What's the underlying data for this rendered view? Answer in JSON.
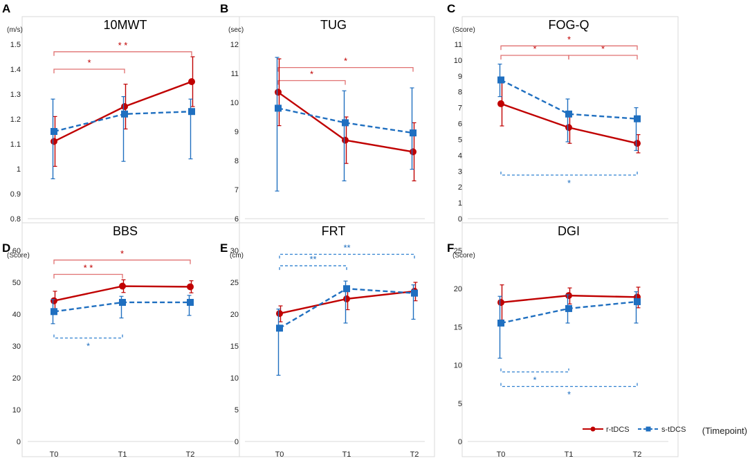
{
  "colors": {
    "r": "#c00000",
    "s": "#1f6fc0",
    "bracket_r": "#e07070",
    "bracket_s": "#2f80d0"
  },
  "legend": {
    "r_label": "r-tDCS",
    "s_label": "s-tDCS"
  },
  "timepoint_label": "(Timepoint)",
  "chart_data": [
    {
      "letter": "A",
      "title": "10MWT",
      "unit": "(m/s)",
      "type": "line",
      "categories": [
        "T0",
        "T1",
        "T2"
      ],
      "ylim": [
        0.8,
        1.5
      ],
      "yticks": [
        0.8,
        0.9,
        1,
        1.1,
        1.2,
        1.3,
        1.4,
        1.5
      ],
      "series": [
        {
          "name": "r-tDCS",
          "values": [
            1.11,
            1.25,
            1.35
          ],
          "err_low": [
            1.01,
            1.16,
            1.25
          ],
          "err_high": [
            1.21,
            1.34,
            1.45
          ]
        },
        {
          "name": "s-tDCS",
          "values": [
            1.15,
            1.22,
            1.23
          ],
          "err_low": [
            0.96,
            1.03,
            1.04
          ],
          "err_high": [
            1.28,
            1.29,
            1.28
          ]
        }
      ],
      "brackets": [
        {
          "group": "r",
          "from": "T0",
          "to": "T1",
          "level": 1.4,
          "label": "*"
        },
        {
          "group": "r",
          "from": "T0",
          "to": "T2",
          "level": 1.47,
          "label": "* *"
        }
      ]
    },
    {
      "letter": "B",
      "title": "TUG",
      "unit": "(sec)",
      "type": "line",
      "categories": [
        "T0",
        "T1",
        "T2"
      ],
      "ylim": [
        6,
        12
      ],
      "yticks": [
        6,
        7,
        8,
        9,
        10,
        11,
        12
      ],
      "series": [
        {
          "name": "r-tDCS",
          "values": [
            10.35,
            8.7,
            8.3
          ],
          "err_low": [
            9.2,
            7.9,
            7.3
          ],
          "err_high": [
            11.5,
            9.5,
            9.3
          ]
        },
        {
          "name": "s-tDCS",
          "values": [
            9.8,
            9.3,
            8.95
          ],
          "err_low": [
            6.95,
            7.3,
            7.7
          ],
          "err_high": [
            11.55,
            10.4,
            10.5
          ]
        }
      ],
      "brackets": [
        {
          "group": "r",
          "from": "T0",
          "to": "T1",
          "level": 10.75,
          "label": "*"
        },
        {
          "group": "r",
          "from": "T0",
          "to": "T2",
          "level": 11.2,
          "label": "*"
        }
      ]
    },
    {
      "letter": "C",
      "title": "FOG-Q",
      "unit": "(Score)",
      "type": "line",
      "categories": [
        "T0",
        "T1",
        "T2"
      ],
      "ylim": [
        0,
        11
      ],
      "yticks": [
        0,
        1,
        2,
        3,
        4,
        5,
        6,
        7,
        8,
        9,
        10,
        11
      ],
      "series": [
        {
          "name": "r-tDCS",
          "values": [
            7.25,
            5.75,
            4.75
          ],
          "err_low": [
            5.85,
            4.75,
            4.15
          ],
          "err_high": [
            8.6,
            6.7,
            5.3
          ]
        },
        {
          "name": "s-tDCS",
          "values": [
            8.75,
            6.6,
            6.3
          ],
          "err_low": [
            7.7,
            4.85,
            4.3
          ],
          "err_high": [
            9.75,
            7.55,
            7.0
          ]
        }
      ],
      "brackets": [
        {
          "group": "r",
          "from": "T0",
          "to": "T1",
          "level": 10.3,
          "label": "*"
        },
        {
          "group": "r",
          "from": "T1",
          "to": "T2",
          "level": 10.3,
          "label": "*"
        },
        {
          "group": "r",
          "from": "T0",
          "to": "T2",
          "level": 10.9,
          "label": "*"
        },
        {
          "group": "s",
          "from": "T0",
          "to": "T2",
          "level": 2.75,
          "label": "*"
        }
      ]
    },
    {
      "letter": "D",
      "title": "BBS",
      "unit": "(Score)",
      "type": "line",
      "categories": [
        "T0",
        "T1",
        "T2"
      ],
      "ylim": [
        0,
        60
      ],
      "yticks": [
        0,
        10,
        20,
        30,
        40,
        50,
        60
      ],
      "series": [
        {
          "name": "r-tDCS",
          "values": [
            44.2,
            48.8,
            48.6
          ],
          "err_low": [
            41.2,
            46.8,
            46.7
          ],
          "err_high": [
            47.2,
            50.8,
            50.5
          ]
        },
        {
          "name": "s-tDCS",
          "values": [
            40.8,
            43.7,
            43.7
          ],
          "err_low": [
            37.0,
            38.8,
            39.6
          ],
          "err_high": [
            44.6,
            45.6,
            45.9
          ]
        }
      ],
      "brackets": [
        {
          "group": "r",
          "from": "T0",
          "to": "T1",
          "level": 52.5,
          "label": "* *"
        },
        {
          "group": "r",
          "from": "T0",
          "to": "T2",
          "level": 57.0,
          "label": "*"
        },
        {
          "group": "s",
          "from": "T0",
          "to": "T1",
          "level": 32.5,
          "label": "*"
        }
      ]
    },
    {
      "letter": "E",
      "title": "FRT",
      "unit": "(cm)",
      "type": "line",
      "categories": [
        "T0",
        "T1",
        "T2"
      ],
      "ylim": [
        0,
        30
      ],
      "yticks": [
        0,
        5,
        10,
        15,
        20,
        25,
        30
      ],
      "series": [
        {
          "name": "r-tDCS",
          "values": [
            20.1,
            22.4,
            23.6
          ],
          "err_low": [
            18.8,
            20.7,
            22.1
          ],
          "err_high": [
            21.3,
            24.1,
            25.0
          ]
        },
        {
          "name": "s-tDCS",
          "values": [
            17.8,
            24.0,
            23.3
          ],
          "err_low": [
            10.4,
            18.6,
            19.2
          ],
          "err_high": [
            20.8,
            25.2,
            24.6
          ]
        }
      ],
      "brackets": [
        {
          "group": "s",
          "from": "T0",
          "to": "T1",
          "level": 27.6,
          "label": "**"
        },
        {
          "group": "s",
          "from": "T0",
          "to": "T2",
          "level": 29.4,
          "label": "**"
        }
      ]
    },
    {
      "letter": "F",
      "title": "DGI",
      "unit": "(Score)",
      "type": "line",
      "categories": [
        "T0",
        "T1",
        "T2"
      ],
      "ylim": [
        0,
        25
      ],
      "yticks": [
        0,
        5,
        10,
        15,
        20,
        25
      ],
      "series": [
        {
          "name": "r-tDCS",
          "values": [
            18.2,
            19.1,
            18.9
          ],
          "err_low": [
            15.9,
            18.0,
            17.5
          ],
          "err_high": [
            20.5,
            20.1,
            20.2
          ]
        },
        {
          "name": "s-tDCS",
          "values": [
            15.5,
            17.4,
            18.3
          ],
          "err_low": [
            10.9,
            15.5,
            15.5
          ],
          "err_high": [
            19.0,
            19.2,
            19.6
          ]
        }
      ],
      "brackets": [
        {
          "group": "s",
          "from": "T0",
          "to": "T1",
          "level": 9.1,
          "label": "*"
        },
        {
          "group": "s",
          "from": "T0",
          "to": "T2",
          "level": 7.2,
          "label": "*"
        }
      ]
    }
  ]
}
